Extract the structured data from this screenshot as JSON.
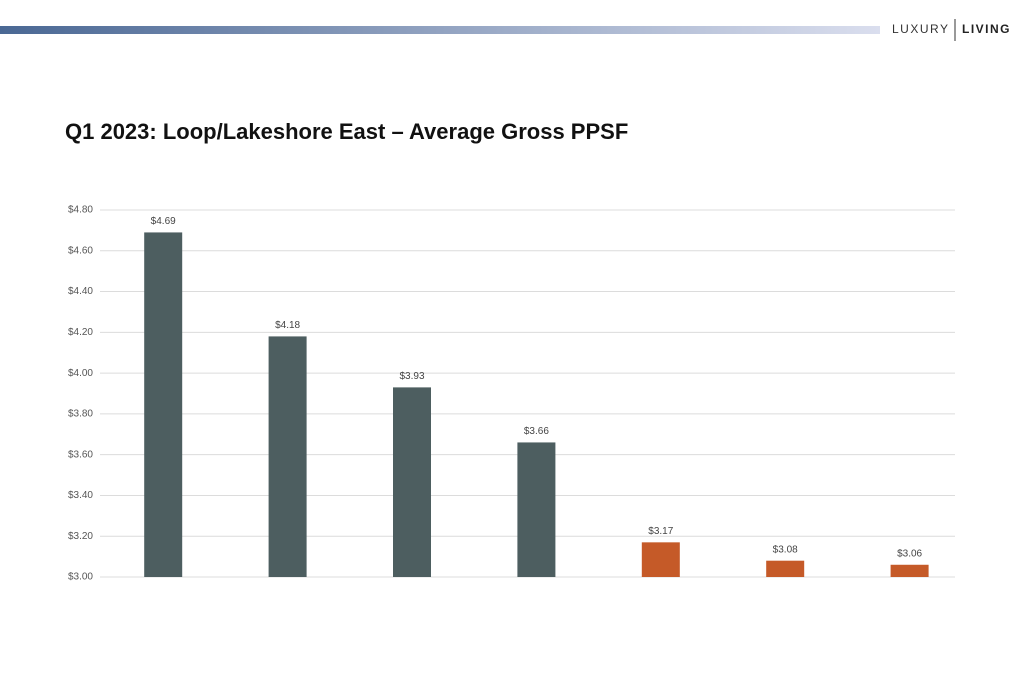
{
  "header": {
    "brand_light": "LUXURY",
    "brand_bold": "LIVING"
  },
  "chart_data": {
    "type": "bar",
    "title": "Q1 2023: Loop/Lakeshore East – Average Gross PPSF",
    "categories": [
      null,
      null,
      null,
      null,
      null,
      null,
      null
    ],
    "values": [
      4.69,
      4.18,
      3.93,
      3.66,
      3.17,
      3.08,
      3.06
    ],
    "value_labels": [
      "$4.69",
      "$4.18",
      "$3.93",
      "$3.66",
      "$3.17",
      "$3.08",
      "$3.06"
    ],
    "colors": [
      "#4d5e60",
      "#4d5e60",
      "#4d5e60",
      "#4d5e60",
      "#c55a28",
      "#c55a28",
      "#c55a28"
    ],
    "ylim": [
      3,
      4.8
    ],
    "yticks": [
      {
        "value": 3,
        "label": "$3.00"
      },
      {
        "value": 3.2,
        "label": "$3.20"
      },
      {
        "value": 3.4,
        "label": "$3.40"
      },
      {
        "value": 3.6,
        "label": "$3.60"
      },
      {
        "value": 3.8,
        "label": "$3.80"
      },
      {
        "value": 4,
        "label": "$4.00"
      },
      {
        "value": 4.2,
        "label": "$4.20"
      },
      {
        "value": 4.4,
        "label": "$4.40"
      },
      {
        "value": 4.6,
        "label": "$4.60"
      },
      {
        "value": 4.8,
        "label": "$4.80"
      }
    ],
    "grid": true
  }
}
